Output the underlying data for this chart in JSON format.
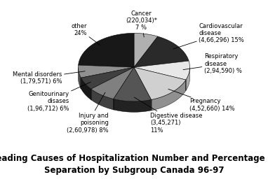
{
  "title": "Leading Causes of Hospitalization Number and Percentage of\nSeparation by Subgroup Canada 96-97",
  "slices": [
    {
      "label": "Cancer\n(220,034)*\n7 %",
      "value": 7,
      "color": "#b0b0b0",
      "dark": "#707070"
    },
    {
      "label": "Cardiovascular\ndisease\n(4,66,296) 15%",
      "value": 15,
      "color": "#2a2a2a",
      "dark": "#101010"
    },
    {
      "label": "Respiratory\ndisease\n(2,94,590) %",
      "value": 9,
      "color": "#e8e8e8",
      "dark": "#aaaaaa"
    },
    {
      "label": "Pregnancy\n(4,52,660) 14%",
      "value": 14,
      "color": "#d0d0d0",
      "dark": "#909090"
    },
    {
      "label": "Digestive disease\n(3,45,271)\n11%",
      "value": 11,
      "color": "#555555",
      "dark": "#222222"
    },
    {
      "label": "Injury and\npoisoning\n(2,60,978) 8%",
      "value": 8,
      "color": "#808080",
      "dark": "#404040"
    },
    {
      "label": "Genitourinary\ndisases\n(1,96,712) 6%",
      "value": 6,
      "color": "#404040",
      "dark": "#181818"
    },
    {
      "label": "Mental disorders\n(1,79,571) 6%",
      "value": 6,
      "color": "#909090",
      "dark": "#505050"
    },
    {
      "label": "other\n24%",
      "value": 24,
      "color": "#181818",
      "dark": "#080808"
    }
  ],
  "title_fontsize": 8.5,
  "label_fontsize": 6.0,
  "background_color": "#ffffff"
}
